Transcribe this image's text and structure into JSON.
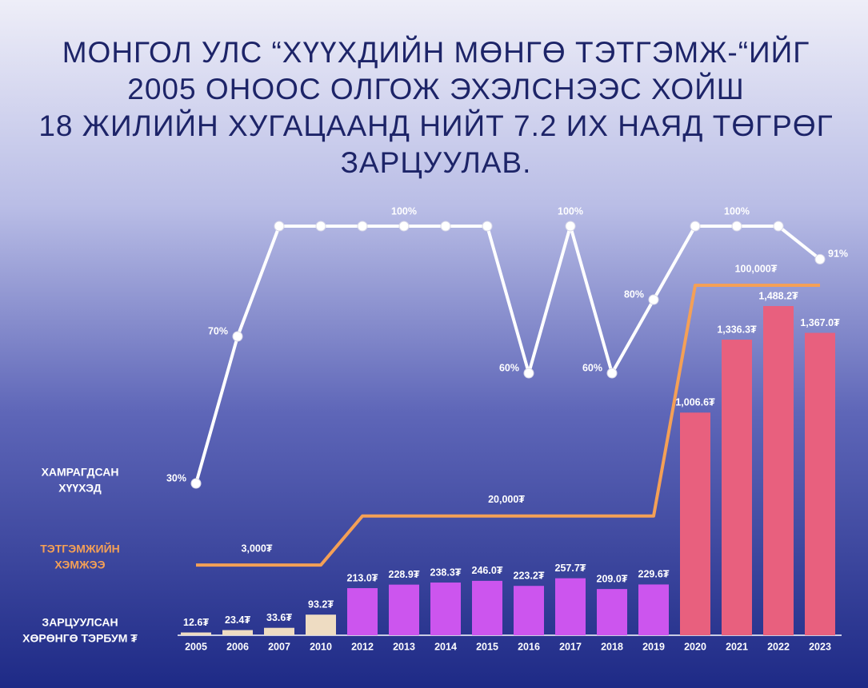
{
  "chart_data": {
    "type": "bar",
    "title": [
      "МОНГОЛ УЛС “ХҮҮХДИЙН МӨНГӨ ТЭТГЭМЖ-“ИЙГ",
      "2005 ОНООС ОЛГОЖ ЭХЭЛСНЭЭС ХОЙШ",
      "18 ЖИЛИЙН ХУГАЦААНД НИЙТ 7.2 ИХ НАЯД ТӨГРӨГ",
      "ЗАРЦУУЛАВ."
    ],
    "categories": [
      "2005",
      "2006",
      "2007",
      "2010",
      "2012",
      "2013",
      "2014",
      "2015",
      "2016",
      "2017",
      "2018",
      "2019",
      "2020",
      "2021",
      "2022",
      "2023"
    ],
    "series": [
      {
        "name": [
          "ХАМРАГДСАН",
          "ХҮҮХЭД"
        ],
        "type": "line",
        "color": "#ffffff",
        "values": [
          30,
          70,
          100,
          100,
          100,
          100,
          100,
          100,
          60,
          100,
          60,
          80,
          100,
          100,
          100,
          91
        ],
        "value_labels": [
          "30%",
          "70%",
          null,
          null,
          null,
          "100%",
          null,
          null,
          "60%",
          "100%",
          "60%",
          "80%",
          null,
          "100%",
          null,
          "91%"
        ]
      },
      {
        "name": [
          "ТЭТГЭМЖИЙН",
          "ХЭМЖЭЭ"
        ],
        "type": "line",
        "color": "#f4a056",
        "values": [
          3000,
          3000,
          3000,
          3000,
          20000,
          20000,
          20000,
          20000,
          20000,
          20000,
          20000,
          20000,
          100000,
          100000,
          100000,
          100000
        ],
        "value_labels": [
          null,
          "3,000₮",
          null,
          null,
          null,
          null,
          null,
          "20,000₮",
          null,
          null,
          null,
          null,
          null,
          "100,000₮",
          null,
          null
        ]
      },
      {
        "name": [
          "ЗАРЦУУЛСАН",
          "ХӨРӨНГӨ ТЭРБУМ ₮"
        ],
        "type": "bar",
        "colors": [
          "#eedcc2",
          "#eedcc2",
          "#eedcc2",
          "#eedcc2",
          "#cc55ee",
          "#cc55ee",
          "#cc55ee",
          "#cc55ee",
          "#cc55ee",
          "#cc55ee",
          "#cc55ee",
          "#cc55ee",
          "#e8607e",
          "#e8607e",
          "#e8607e",
          "#e8607e"
        ],
        "values": [
          12.6,
          23.4,
          33.6,
          93.2,
          213.0,
          228.9,
          238.3,
          246.0,
          223.2,
          257.7,
          209.0,
          229.6,
          1006.6,
          1336.3,
          1488.2,
          1367.0
        ],
        "value_labels": [
          "12.6₮",
          "23.4₮",
          "33.6₮",
          "93.2₮",
          "213.0₮",
          "228.9₮",
          "238.3₮",
          "246.0₮",
          "223.2₮",
          "257.7₮",
          "209.0₮",
          "229.6₮",
          "1,006.6₮",
          "1,336.3₮",
          "1,488.2₮",
          "1,367.0₮"
        ]
      }
    ]
  }
}
